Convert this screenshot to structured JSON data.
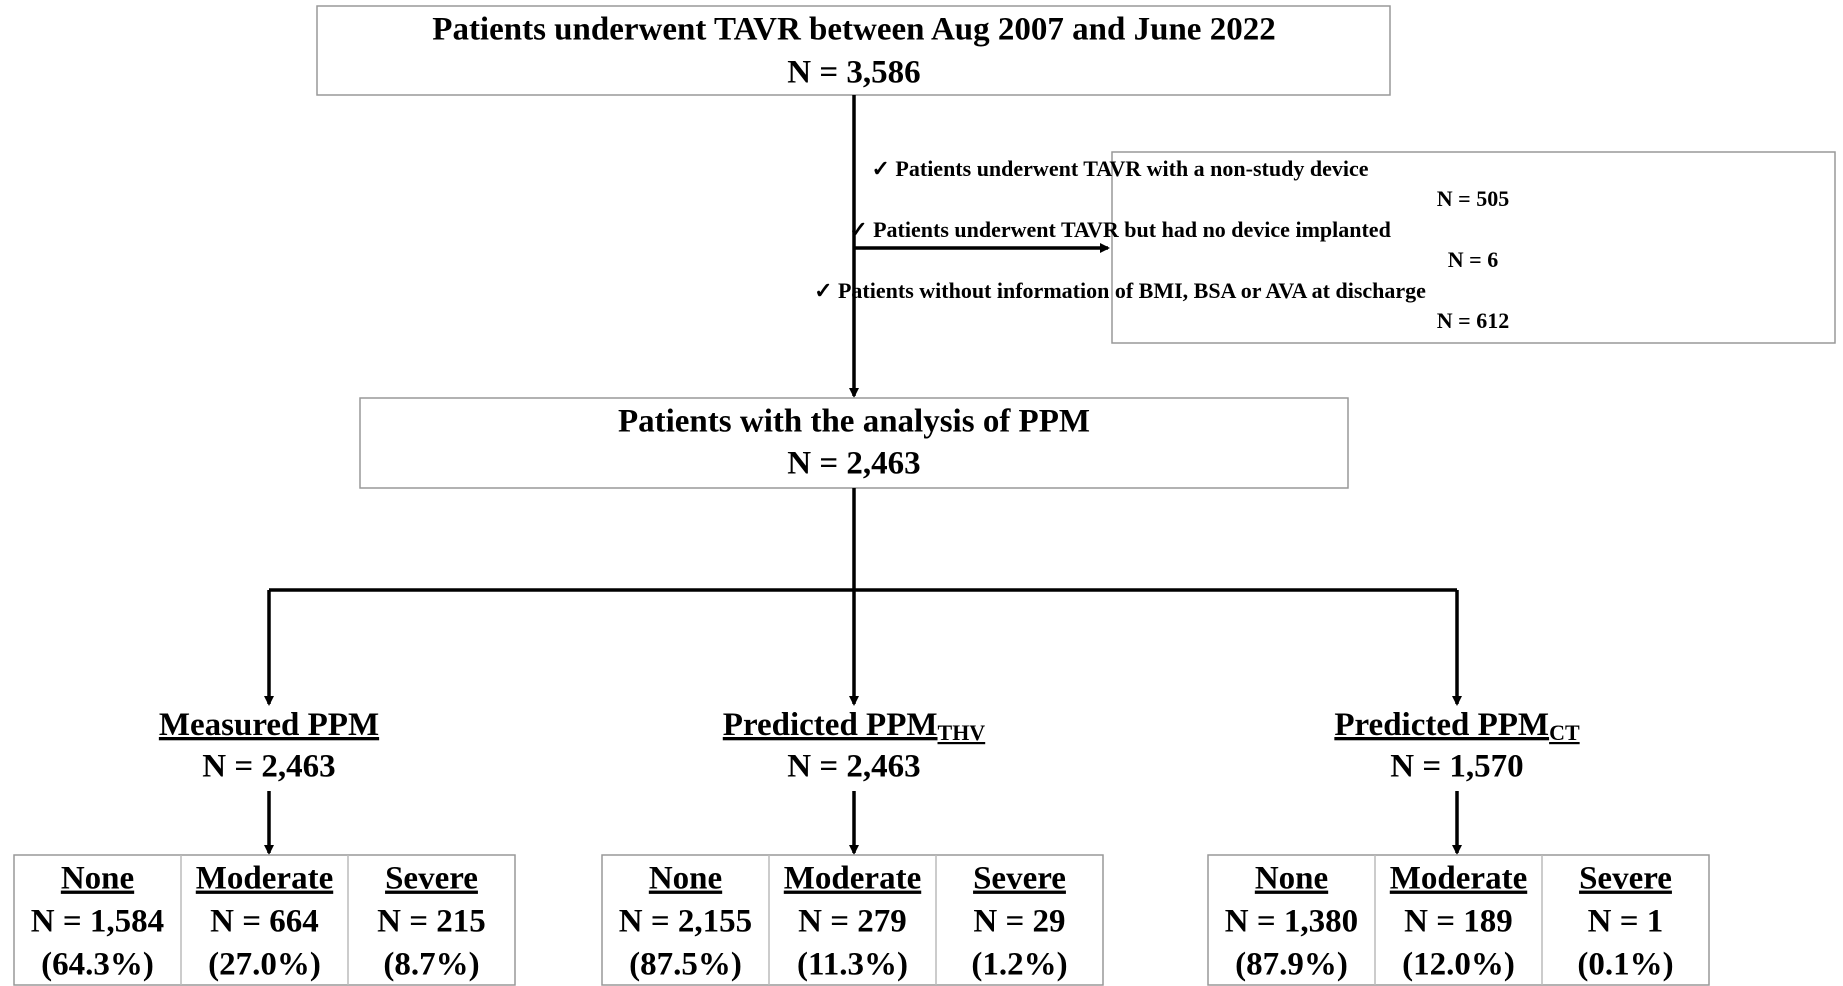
{
  "top": {
    "title": "Patients underwent TAVR between Aug 2007 and June 2022",
    "n": "N = 3,586"
  },
  "exclusions": [
    {
      "label": "✓ Patients underwent TAVR with a non-study device",
      "n": "N = 505"
    },
    {
      "label": "✓ Patients underwent TAVR but had no device implanted",
      "n": "N = 6"
    },
    {
      "label": "✓ Patients without information of BMI, BSA or AVA at discharge",
      "n": "N = 612"
    }
  ],
  "middle": {
    "title": "Patients with the analysis of PPM",
    "n": "N = 2,463"
  },
  "groups": [
    {
      "title": "Measured PPM",
      "n": "N = 2,463",
      "cells": [
        {
          "name": "None",
          "n": "N = 1,584",
          "pct": "(64.3%)"
        },
        {
          "name": "Moderate",
          "n": "N = 664",
          "pct": "(27.0%)"
        },
        {
          "name": "Severe",
          "n": "N = 215",
          "pct": "(8.7%)"
        }
      ]
    },
    {
      "title": "Predicted PPM",
      "sub": "THV",
      "n": "N = 2,463",
      "cells": [
        {
          "name": "None",
          "n": "N = 2,155",
          "pct": "(87.5%)"
        },
        {
          "name": "Moderate",
          "n": "N = 279",
          "pct": "(11.3%)"
        },
        {
          "name": "Severe",
          "n": "N = 29",
          "pct": "(1.2%)"
        }
      ]
    },
    {
      "title": "Predicted PPM",
      "sub": "CT",
      "n": "N = 1,570",
      "cells": [
        {
          "name": "None",
          "n": "N = 1,380",
          "pct": "(87.9%)"
        },
        {
          "name": "Moderate",
          "n": "N = 189",
          "pct": "(12.0%)"
        },
        {
          "name": "Severe",
          "n": "N = 1",
          "pct": "(0.1%)"
        }
      ]
    }
  ]
}
